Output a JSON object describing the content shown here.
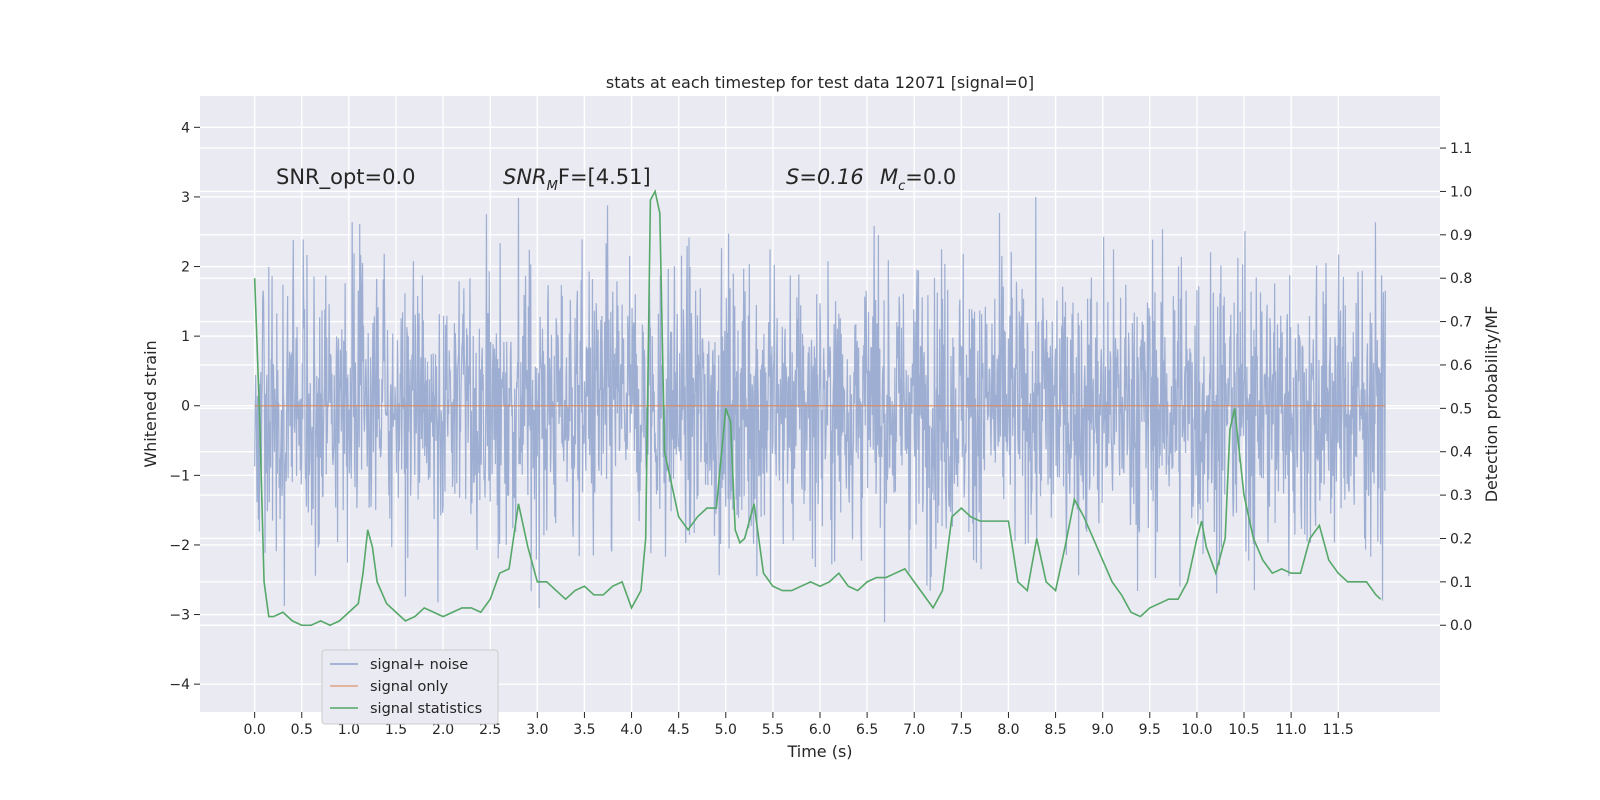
{
  "chart_data": {
    "type": "line",
    "title": "stats at each timestep for test data 12071 [signal=0]",
    "xlabel": "Time (s)",
    "ylabel": "Whitened strain",
    "ylabel_right": "Detection probability/MF",
    "xlim": [
      -0.58,
      12.58
    ],
    "ylim": [
      -4.4,
      4.45
    ],
    "ylim_right": [
      -0.2,
      1.22
    ],
    "xticks": [
      "0.0",
      "0.5",
      "1.0",
      "1.5",
      "2.0",
      "2.5",
      "3.0",
      "3.5",
      "4.0",
      "4.5",
      "5.0",
      "5.5",
      "6.0",
      "6.5",
      "7.0",
      "7.5",
      "8.0",
      "8.5",
      "9.0",
      "9.5",
      "10.0",
      "10.5",
      "11.0",
      "11.5"
    ],
    "yticks": [
      "4",
      "3",
      "2",
      "1",
      "0",
      "−1",
      "−2",
      "−3",
      "−4"
    ],
    "yticks_right": [
      "1.1",
      "1.0",
      "0.9",
      "0.8",
      "0.7",
      "0.6",
      "0.5",
      "0.4",
      "0.3",
      "0.2",
      "0.1",
      "0.0"
    ],
    "grid": true,
    "legend_position": "lower-left",
    "annotations": {
      "snr_opt": "SNR_opt=0.0",
      "snr_mf_base": "SNR",
      "snr_mf_sub": "M",
      "snr_mf_rest": "F=[4.51]",
      "s_stat": "S=0.16",
      "mc_base": "M",
      "mc_sub": "c",
      "mc_rest": "=0.0"
    },
    "series": [
      {
        "name": "signal+ noise",
        "color": "#8fa3cc",
        "description": "whitened strain noise, roughly Gaussian, range approx -3.9 to 4.1, t from 0 to 12"
      },
      {
        "name": "signal only",
        "color": "#dd8452",
        "values_constant": 0.0
      },
      {
        "name": "signal statistics",
        "color": "#55a868",
        "axis": "right",
        "x": [
          0.0,
          0.05,
          0.1,
          0.15,
          0.2,
          0.3,
          0.4,
          0.5,
          0.6,
          0.7,
          0.8,
          0.9,
          1.0,
          1.1,
          1.15,
          1.2,
          1.25,
          1.3,
          1.4,
          1.5,
          1.6,
          1.7,
          1.8,
          1.9,
          2.0,
          2.1,
          2.2,
          2.3,
          2.4,
          2.5,
          2.6,
          2.7,
          2.8,
          2.9,
          3.0,
          3.1,
          3.2,
          3.3,
          3.4,
          3.5,
          3.6,
          3.7,
          3.8,
          3.9,
          4.0,
          4.1,
          4.15,
          4.2,
          4.25,
          4.3,
          4.35,
          4.4,
          4.45,
          4.5,
          4.6,
          4.7,
          4.8,
          4.9,
          5.0,
          5.05,
          5.1,
          5.15,
          5.2,
          5.3,
          5.4,
          5.5,
          5.6,
          5.7,
          5.8,
          5.9,
          6.0,
          6.1,
          6.2,
          6.3,
          6.4,
          6.5,
          6.6,
          6.7,
          6.8,
          6.9,
          7.0,
          7.1,
          7.2,
          7.3,
          7.4,
          7.5,
          7.6,
          7.7,
          7.8,
          7.9,
          8.0,
          8.1,
          8.2,
          8.3,
          8.4,
          8.5,
          8.6,
          8.7,
          8.8,
          8.9,
          9.0,
          9.1,
          9.2,
          9.3,
          9.4,
          9.5,
          9.6,
          9.7,
          9.8,
          9.9,
          10.0,
          10.05,
          10.1,
          10.2,
          10.3,
          10.35,
          10.4,
          10.5,
          10.6,
          10.7,
          10.8,
          10.9,
          11.0,
          11.1,
          11.2,
          11.3,
          11.4,
          11.5,
          11.6,
          11.7,
          11.8,
          11.9,
          11.95
        ],
        "values": [
          0.8,
          0.5,
          0.1,
          0.02,
          0.02,
          0.03,
          0.01,
          0.0,
          0.0,
          0.01,
          0.0,
          0.01,
          0.03,
          0.05,
          0.12,
          0.22,
          0.18,
          0.1,
          0.05,
          0.03,
          0.01,
          0.02,
          0.04,
          0.03,
          0.02,
          0.03,
          0.04,
          0.04,
          0.03,
          0.06,
          0.12,
          0.13,
          0.28,
          0.18,
          0.1,
          0.1,
          0.08,
          0.06,
          0.08,
          0.09,
          0.07,
          0.07,
          0.09,
          0.1,
          0.04,
          0.08,
          0.2,
          0.98,
          1.0,
          0.95,
          0.4,
          0.35,
          0.3,
          0.25,
          0.22,
          0.25,
          0.27,
          0.27,
          0.5,
          0.47,
          0.22,
          0.19,
          0.2,
          0.28,
          0.12,
          0.09,
          0.08,
          0.08,
          0.09,
          0.1,
          0.09,
          0.1,
          0.12,
          0.09,
          0.08,
          0.1,
          0.11,
          0.11,
          0.12,
          0.13,
          0.1,
          0.07,
          0.04,
          0.08,
          0.25,
          0.27,
          0.25,
          0.24,
          0.24,
          0.24,
          0.24,
          0.1,
          0.08,
          0.2,
          0.1,
          0.08,
          0.18,
          0.29,
          0.25,
          0.2,
          0.15,
          0.1,
          0.07,
          0.03,
          0.02,
          0.04,
          0.05,
          0.06,
          0.06,
          0.1,
          0.2,
          0.24,
          0.18,
          0.12,
          0.2,
          0.45,
          0.5,
          0.3,
          0.2,
          0.15,
          0.12,
          0.13,
          0.12,
          0.12,
          0.2,
          0.23,
          0.15,
          0.12,
          0.1,
          0.1,
          0.1,
          0.07,
          0.06
        ]
      }
    ]
  }
}
